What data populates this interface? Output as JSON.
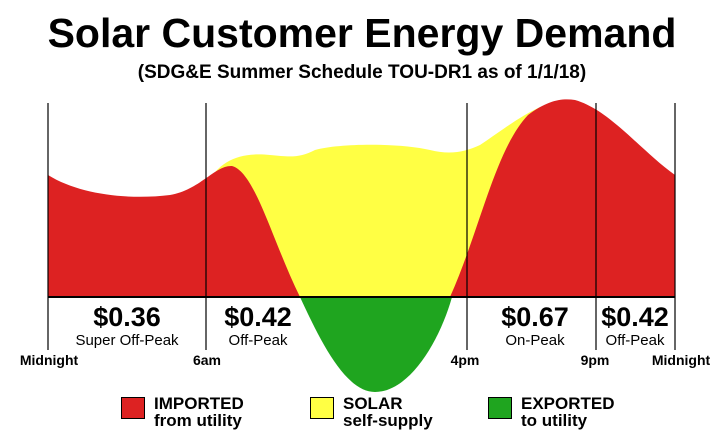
{
  "title": "Solar Customer Energy Demand",
  "subtitle": "(SDG&E Summer Schedule TOU-DR1 as of 1/1/18)",
  "periods": [
    {
      "price": "$0.36",
      "label": "Super Off-Peak"
    },
    {
      "price": "$0.42",
      "label": "Off-Peak"
    },
    {
      "price": "$0.67",
      "label": "On-Peak"
    },
    {
      "price": "$0.42",
      "label": "Off-Peak"
    }
  ],
  "times": [
    "Midnight",
    "6am",
    "4pm",
    "9pm",
    "Midnight"
  ],
  "legend": [
    {
      "line1": "IMPORTED",
      "line2": "from utility",
      "color": "#dd2222"
    },
    {
      "line1": "SOLAR",
      "line2": "self-supply",
      "color": "#ffff44"
    },
    {
      "line1": "EXPORTED",
      "line2": "to utility",
      "color": "#1fa51f"
    }
  ]
}
